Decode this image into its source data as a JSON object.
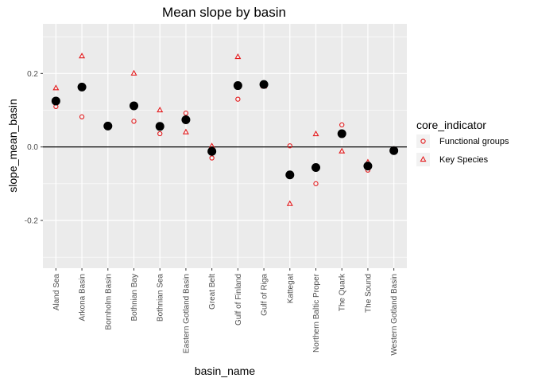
{
  "chart_data": {
    "type": "scatter",
    "title": "Mean slope by basin",
    "xlabel": "basin_name",
    "ylabel": "slope_mean_basin",
    "ylim": [
      -0.33,
      0.335
    ],
    "yticks": [
      -0.2,
      0.0,
      0.2
    ],
    "ytick_labels": [
      "-0.2",
      "0.0",
      "0.2"
    ],
    "reference_line_y": 0,
    "grid": true,
    "categories": [
      "Aland Sea",
      "Arkona Basin",
      "Bornholm Basin",
      "Bothnian Bay",
      "Bothnian Sea",
      "Eastern Gotland Basin",
      "Great Belt",
      "Gulf of Finland",
      "Gulf of Riga",
      "Kattegat",
      "Northern Baltic Proper",
      "The Quark",
      "The Sound",
      "Western Gotland Basin"
    ],
    "mean_series": {
      "color": "#000000",
      "values": [
        0.125,
        0.163,
        0.057,
        0.112,
        0.056,
        0.074,
        -0.012,
        0.167,
        0.17,
        -0.076,
        -0.056,
        0.036,
        -0.052,
        -0.01
      ]
    },
    "series": [
      {
        "name": "Functional groups",
        "shape": "circle",
        "color": "#e41a1c",
        "values": [
          0.11,
          0.082,
          0.058,
          0.07,
          0.036,
          0.092,
          -0.03,
          0.13,
          0.17,
          0.003,
          -0.1,
          0.06,
          -0.063,
          -0.007
        ]
      },
      {
        "name": "Key Species",
        "shape": "triangle",
        "color": "#e41a1c",
        "values": [
          0.16,
          0.247,
          0.058,
          0.2,
          0.1,
          0.04,
          0.002,
          0.245,
          0.165,
          -0.155,
          0.035,
          -0.012,
          -0.042,
          -0.007
        ]
      }
    ],
    "legend": {
      "title": "core_indicator",
      "placement": "right"
    }
  }
}
